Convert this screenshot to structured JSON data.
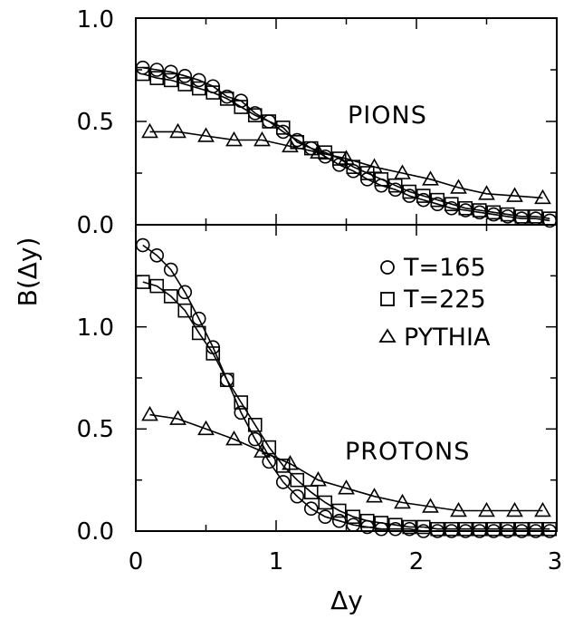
{
  "chart_data": [
    {
      "type": "line",
      "panel": "top",
      "annotation": "PIONS",
      "x_range": [
        0,
        3
      ],
      "ylim": [
        0,
        1.0
      ],
      "yticks": [
        "0.0",
        "0.5",
        "1.0"
      ],
      "grid": false,
      "series": [
        {
          "name": "T=165",
          "marker": "circle",
          "x": [
            0.05,
            0.15,
            0.25,
            0.35,
            0.45,
            0.55,
            0.65,
            0.75,
            0.85,
            0.95,
            1.05,
            1.15,
            1.25,
            1.35,
            1.45,
            1.55,
            1.65,
            1.75,
            1.85,
            1.95,
            2.05,
            2.15,
            2.25,
            2.35,
            2.45,
            2.55,
            2.65,
            2.75,
            2.85,
            2.95
          ],
          "y": [
            0.76,
            0.75,
            0.74,
            0.72,
            0.7,
            0.67,
            0.62,
            0.6,
            0.54,
            0.5,
            0.45,
            0.41,
            0.37,
            0.33,
            0.29,
            0.26,
            0.22,
            0.19,
            0.17,
            0.14,
            0.12,
            0.1,
            0.08,
            0.07,
            0.06,
            0.05,
            0.04,
            0.03,
            0.03,
            0.02
          ]
        },
        {
          "name": "T=225",
          "marker": "square",
          "x": [
            0.05,
            0.15,
            0.25,
            0.35,
            0.45,
            0.55,
            0.65,
            0.75,
            0.85,
            0.95,
            1.05,
            1.15,
            1.25,
            1.35,
            1.45,
            1.55,
            1.65,
            1.75,
            1.85,
            1.95,
            2.05,
            2.15,
            2.25,
            2.35,
            2.45,
            2.55,
            2.65,
            2.75,
            2.85,
            2.95
          ],
          "y": [
            0.73,
            0.71,
            0.7,
            0.68,
            0.66,
            0.64,
            0.61,
            0.57,
            0.53,
            0.5,
            0.47,
            0.4,
            0.37,
            0.35,
            0.32,
            0.28,
            0.25,
            0.22,
            0.19,
            0.16,
            0.14,
            0.12,
            0.1,
            0.08,
            0.07,
            0.06,
            0.05,
            0.04,
            0.04,
            0.03
          ]
        },
        {
          "name": "PYTHIA",
          "marker": "triangle",
          "x": [
            0.1,
            0.3,
            0.5,
            0.7,
            0.9,
            1.1,
            1.3,
            1.5,
            1.7,
            1.9,
            2.1,
            2.3,
            2.5,
            2.7,
            2.9
          ],
          "y": [
            0.45,
            0.45,
            0.43,
            0.41,
            0.41,
            0.38,
            0.35,
            0.32,
            0.28,
            0.25,
            0.22,
            0.18,
            0.15,
            0.14,
            0.13
          ]
        }
      ]
    },
    {
      "type": "line",
      "panel": "bottom",
      "annotation": "PROTONS",
      "x_range": [
        0,
        3
      ],
      "ylim": [
        0,
        1.5
      ],
      "yticks": [
        "0.0",
        "0.5",
        "1.0"
      ],
      "grid": false,
      "series": [
        {
          "name": "T=165",
          "marker": "circle",
          "x": [
            0.05,
            0.15,
            0.25,
            0.35,
            0.45,
            0.55,
            0.65,
            0.75,
            0.85,
            0.95,
            1.05,
            1.15,
            1.25,
            1.35,
            1.45,
            1.55,
            1.65,
            1.75,
            1.85,
            1.95,
            2.05,
            2.15,
            2.25,
            2.35,
            2.45,
            2.55,
            2.65,
            2.75,
            2.85,
            2.95
          ],
          "y": [
            1.4,
            1.35,
            1.28,
            1.17,
            1.04,
            0.9,
            0.74,
            0.58,
            0.45,
            0.34,
            0.24,
            0.17,
            0.11,
            0.07,
            0.05,
            0.03,
            0.02,
            0.01,
            0.01,
            0.01,
            0.0,
            0.0,
            0.0,
            0.0,
            0.0,
            0.0,
            0.0,
            0.0,
            0.0,
            0.0
          ]
        },
        {
          "name": "T=225",
          "marker": "square",
          "x": [
            0.05,
            0.15,
            0.25,
            0.35,
            0.45,
            0.55,
            0.65,
            0.75,
            0.85,
            0.95,
            1.05,
            1.15,
            1.25,
            1.35,
            1.45,
            1.55,
            1.65,
            1.75,
            1.85,
            1.95,
            2.05,
            2.15,
            2.25,
            2.35,
            2.45,
            2.55,
            2.65,
            2.75,
            2.85,
            2.95
          ],
          "y": [
            1.22,
            1.2,
            1.15,
            1.08,
            0.97,
            0.87,
            0.74,
            0.63,
            0.52,
            0.41,
            0.32,
            0.25,
            0.19,
            0.14,
            0.1,
            0.07,
            0.05,
            0.04,
            0.03,
            0.02,
            0.02,
            0.01,
            0.01,
            0.01,
            0.01,
            0.01,
            0.01,
            0.01,
            0.01,
            0.01
          ]
        },
        {
          "name": "PYTHIA",
          "marker": "triangle",
          "x": [
            0.1,
            0.3,
            0.5,
            0.7,
            0.9,
            1.1,
            1.3,
            1.5,
            1.7,
            1.9,
            2.1,
            2.3,
            2.5,
            2.7,
            2.9
          ],
          "y": [
            0.57,
            0.55,
            0.5,
            0.45,
            0.39,
            0.33,
            0.25,
            0.21,
            0.17,
            0.14,
            0.12,
            0.1,
            0.1,
            0.1,
            0.1
          ]
        }
      ],
      "legend": {
        "placement": "top-right",
        "entries": [
          {
            "marker": "circle",
            "label": "T=165"
          },
          {
            "marker": "square",
            "label": "T=225"
          },
          {
            "marker": "triangle",
            "label": "PYTHIA"
          }
        ]
      }
    }
  ],
  "axes": {
    "xlabel": "Δy",
    "ylabel": "B(Δy)",
    "xticks": [
      "0",
      "1",
      "2",
      "3"
    ]
  }
}
